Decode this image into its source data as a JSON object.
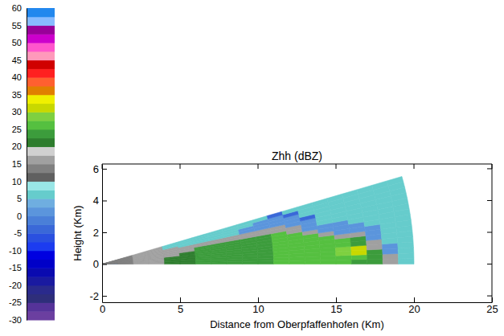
{
  "chart_data": {
    "type": "heatmap",
    "title": "Zhh (dBZ)",
    "x_label": "Distance from Oberpfaffenhofen (Km)",
    "y_label": "Height (Km)",
    "xlim": [
      0,
      25
    ],
    "xticks": [
      0,
      5,
      10,
      15,
      20,
      25
    ],
    "ylim": [
      -2.4,
      6.3
    ],
    "yticks": [
      -2,
      0,
      2,
      4,
      6
    ],
    "range_edges": [
      0,
      1,
      2,
      3,
      4,
      5,
      6,
      7,
      8,
      9,
      10,
      11,
      12,
      13,
      14,
      15,
      16,
      17,
      18,
      19,
      20
    ],
    "elevation_edges": [
      0,
      1,
      2,
      3,
      4,
      5,
      6,
      7,
      8,
      9,
      10,
      11,
      12,
      13,
      14,
      15,
      16
    ],
    "cells": [
      [
        2,
        14,
        15,
        15,
        20,
        22,
        23,
        23,
        23,
        24,
        24,
        25,
        26,
        26,
        26,
        25,
        24,
        24,
        15,
        6
      ],
      [
        14,
        14,
        15,
        15,
        20,
        22,
        23,
        23,
        23,
        24,
        24,
        25,
        26,
        26,
        26,
        25,
        26,
        24,
        15,
        6
      ],
      [
        14,
        14,
        15,
        15,
        20,
        22,
        23,
        23,
        23,
        24,
        24,
        25,
        26,
        26,
        26,
        28,
        31,
        24,
        1,
        6
      ],
      [
        14,
        14,
        15,
        15,
        20,
        22,
        23,
        23,
        23,
        24,
        24,
        25,
        26,
        25,
        25,
        28,
        31,
        15,
        1,
        6
      ],
      [
        14,
        14,
        15,
        15,
        20,
        22,
        23,
        23,
        23,
        24,
        24,
        25,
        25,
        25,
        25,
        25,
        24,
        15,
        6,
        6
      ],
      [
        14,
        14,
        15,
        15,
        20,
        22,
        23,
        23,
        23,
        24,
        24,
        25,
        25,
        25,
        25,
        25,
        24,
        1,
        6,
        6
      ],
      [
        14,
        14,
        15,
        15,
        15,
        22,
        23,
        23,
        23,
        24,
        24,
        25,
        25,
        25,
        25,
        15,
        15,
        1,
        6,
        6
      ],
      [
        14,
        14,
        15,
        15,
        15,
        22,
        23,
        23,
        23,
        24,
        24,
        25,
        25,
        25,
        15,
        1,
        1,
        1,
        6,
        6
      ],
      [
        14,
        14,
        15,
        15,
        15,
        15,
        23,
        23,
        23,
        24,
        24,
        25,
        25,
        15,
        1,
        1,
        1,
        6,
        6,
        6
      ],
      [
        14,
        14,
        15,
        15,
        15,
        15,
        23,
        23,
        23,
        24,
        24,
        25,
        15,
        1,
        1,
        1,
        6,
        6,
        6,
        6
      ],
      [
        14,
        14,
        15,
        15,
        15,
        15,
        15,
        15,
        15,
        15,
        15,
        15,
        15,
        1,
        6,
        6,
        6,
        6,
        6,
        6
      ],
      [
        14,
        14,
        15,
        15,
        15,
        15,
        15,
        15,
        15,
        15,
        15,
        15,
        1,
        1,
        6,
        6,
        6,
        6,
        6,
        6
      ],
      [
        14,
        14,
        15,
        15,
        15,
        6,
        6,
        6,
        6,
        1,
        1,
        1,
        1,
        -3,
        6,
        6,
        6,
        6,
        6,
        6
      ],
      [
        14,
        14,
        15,
        15,
        6,
        6,
        6,
        6,
        6,
        1,
        1,
        1,
        1,
        6,
        6,
        6,
        6,
        6,
        6,
        6
      ],
      [
        14,
        14,
        15,
        15,
        6,
        6,
        6,
        6,
        6,
        6,
        1,
        1,
        -3,
        6,
        6,
        6,
        6,
        6,
        6,
        6
      ],
      [
        14,
        14,
        15,
        15,
        6,
        6,
        6,
        6,
        6,
        6,
        6,
        -3,
        6,
        6,
        6,
        6,
        6,
        6,
        6,
        6
      ]
    ],
    "color_bar": {
      "range": [
        -30,
        60
      ],
      "ticks": [
        -30,
        -25,
        -20,
        -15,
        -10,
        -5,
        0,
        5,
        10,
        15,
        20,
        25,
        30,
        35,
        40,
        45,
        50,
        55,
        60
      ]
    }
  }
}
